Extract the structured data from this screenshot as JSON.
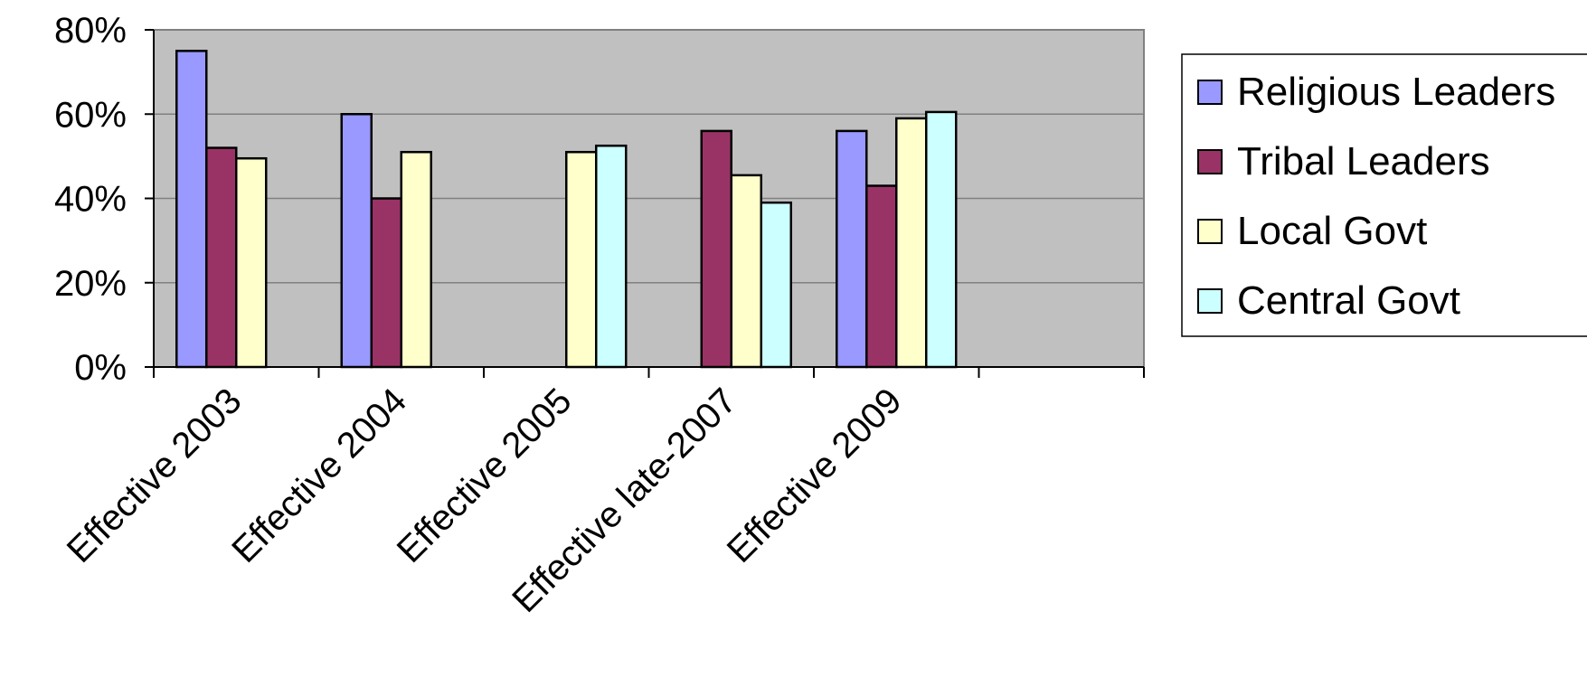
{
  "chart_data": {
    "type": "bar",
    "categories": [
      "Effective 2003",
      "Effective 2004",
      "Effective 2005",
      "Effective late-2007",
      "Effective 2009",
      ""
    ],
    "series": [
      {
        "name": "Religious Leaders",
        "color": "#9999ff",
        "values": [
          75,
          60,
          null,
          null,
          56,
          null
        ]
      },
      {
        "name": "Tribal Leaders",
        "color": "#993366",
        "values": [
          52,
          40,
          null,
          56,
          43,
          null
        ]
      },
      {
        "name": "Local Govt",
        "color": "#ffffcc",
        "values": [
          49.5,
          51,
          51,
          45.5,
          59,
          null
        ]
      },
      {
        "name": "Central Govt",
        "color": "#ccffff",
        "values": [
          null,
          null,
          52.5,
          39,
          60.5,
          null
        ]
      }
    ],
    "ylim": [
      0,
      80
    ],
    "yticks": [
      "0%",
      "20%",
      "40%",
      "60%",
      "80%"
    ],
    "ytick_values": [
      0,
      20,
      40,
      60,
      80
    ],
    "grid": true,
    "legend_position": "right",
    "plot_background": "#c0c0c0"
  }
}
